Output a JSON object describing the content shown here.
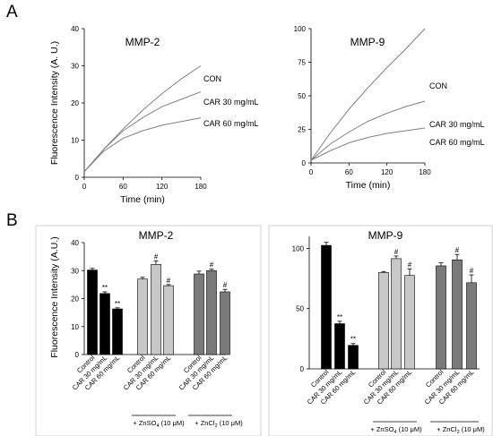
{
  "panels": {
    "a": "A",
    "b": "B"
  },
  "chart_data": [
    {
      "type": "line",
      "title": "MMP-2",
      "xlabel": "Time (min)",
      "ylabel": "Fluorescence Intensity (A. U.)",
      "xlim": [
        0,
        180
      ],
      "ylim": [
        0,
        40
      ],
      "xticks": [
        "0",
        "60",
        "120",
        "180"
      ],
      "yticks": [
        "0",
        "10",
        "20",
        "30",
        "40"
      ],
      "x": [
        0,
        30,
        60,
        90,
        120,
        150,
        180
      ],
      "series": [
        {
          "name": "CON",
          "values": [
            1.5,
            7.5,
            13,
            18,
            22.5,
            26.5,
            30
          ]
        },
        {
          "name": "CAR 30 mg/mL",
          "values": [
            1.5,
            7.5,
            12.5,
            16,
            19,
            21,
            23
          ]
        },
        {
          "name": "CAR 60 mg/mL",
          "values": [
            1.5,
            7,
            10.5,
            12.5,
            14,
            15,
            16
          ]
        }
      ]
    },
    {
      "type": "line",
      "title": "MMP-9",
      "xlabel": "Time (min)",
      "ylabel": "",
      "xlim": [
        0,
        180
      ],
      "ylim": [
        0,
        100
      ],
      "xticks": [
        "0",
        "60",
        "120",
        "180"
      ],
      "yticks": [
        "0",
        "25",
        "50",
        "75",
        "100"
      ],
      "x": [
        0,
        30,
        60,
        90,
        120,
        150,
        180
      ],
      "series": [
        {
          "name": "CON",
          "values": [
            2,
            22,
            40,
            56,
            71,
            85,
            100
          ]
        },
        {
          "name": "CAR 30 mg/mL",
          "values": [
            2,
            14,
            23,
            31,
            37,
            42,
            46
          ]
        },
        {
          "name": "CAR 60 mg/mL",
          "values": [
            2,
            9,
            15,
            19,
            22,
            24,
            26
          ]
        }
      ]
    },
    {
      "type": "bar",
      "title": "MMP-2",
      "ylabel": "Fluorescence Intensity (A.U.)",
      "ylim": [
        0,
        40
      ],
      "yticks": [
        "0",
        "10",
        "20",
        "30",
        "40"
      ],
      "categories": [
        "Control",
        "CAR 30 mg/mL",
        "CAR 60 mg/mL",
        "Control",
        "CAR 30 mg/mL",
        "CAR 60 mg/mL",
        "Control",
        "CAR 30 mg/mL",
        "CAR 60 mg/mL"
      ],
      "values": [
        30.2,
        21.8,
        16.3,
        27,
        32.2,
        24.6,
        28.8,
        30,
        22.4
      ],
      "errors": [
        0.6,
        0.6,
        0.4,
        0.6,
        1.3,
        0.4,
        1.0,
        0.5,
        0.9
      ],
      "colors": [
        "#000000",
        "#000000",
        "#000000",
        "#c8c8c8",
        "#c8c8c8",
        "#c8c8c8",
        "#7a7a7a",
        "#7a7a7a",
        "#7a7a7a"
      ],
      "marks": [
        "",
        "**",
        "**",
        "",
        "#",
        "#",
        "",
        "#",
        "#"
      ],
      "groups": [
        {
          "prefix": "+ ZnSO",
          "sub": "4",
          "suffix": " (10 μM)"
        },
        {
          "prefix": "+ ZnCl",
          "sub": "2",
          "suffix": " (10 μM)"
        }
      ]
    },
    {
      "type": "bar",
      "title": "MMP-9",
      "ylabel": "",
      "ylim": [
        0,
        110
      ],
      "yticks": [
        "0",
        "50",
        "100"
      ],
      "categories": [
        "Control",
        "CAR 30 mg/mL",
        "CAR 60 mg/mL",
        "Control",
        "CAR 30 mg/mL",
        "CAR 60 mg/mL",
        "Control",
        "CAR 30 mg/mL",
        "CAR 60 mg/mL"
      ],
      "values": [
        102.5,
        37.5,
        19.5,
        80,
        91.5,
        77.5,
        85.5,
        90.5,
        71.5
      ],
      "errors": [
        2.5,
        2,
        1.5,
        0.8,
        2.2,
        5.5,
        2.5,
        4.5,
        6.5
      ],
      "colors": [
        "#000000",
        "#000000",
        "#000000",
        "#c8c8c8",
        "#c8c8c8",
        "#c8c8c8",
        "#7a7a7a",
        "#7a7a7a",
        "#7a7a7a"
      ],
      "marks": [
        "",
        "**",
        "**",
        "",
        "#",
        "#",
        "",
        "#",
        "#"
      ],
      "groups": [
        {
          "prefix": "+ ZnSO",
          "sub": "4",
          "suffix": " (10 μM)"
        },
        {
          "prefix": "+ ZnCl",
          "sub": "2",
          "suffix": " (10 μM)"
        }
      ]
    }
  ]
}
